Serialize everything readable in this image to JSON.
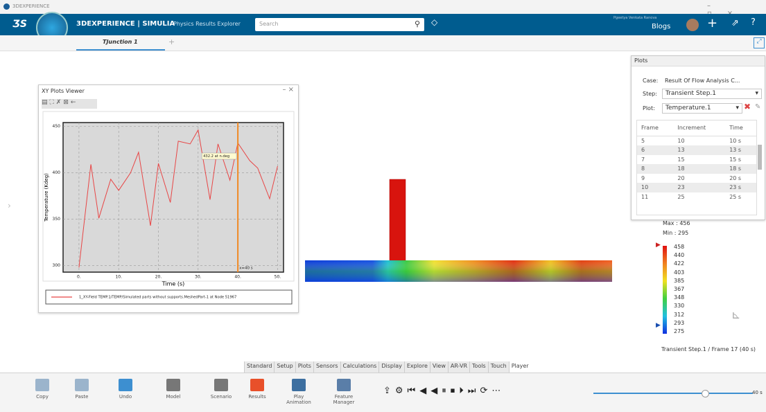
{
  "window": {
    "title": "3DEXPERIENCE"
  },
  "topbar": {
    "brand": "3DEXPERIENCE | SIMULIA",
    "subtitle": "Physics Results Explorer",
    "search": "Search",
    "user": "Pgeetya Venkata Ranova",
    "workspace": "Blogs"
  },
  "tabs": [
    "TJunction 1"
  ],
  "xy_viewer": {
    "title": "XY Plots Viewer"
  },
  "chart_data": {
    "type": "line",
    "x": [
      0,
      3,
      5,
      8,
      10,
      13,
      15,
      18,
      20,
      23,
      25,
      28,
      30,
      33,
      35,
      38,
      40,
      43,
      45,
      48,
      50
    ],
    "series": [
      {
        "name": "1_XY-Field TEMP.1/TEMP/Simulated parts without supports.MeshedPart-1 at Node 51967",
        "color": "#e84545",
        "values": [
          298,
          409,
          351,
          393,
          381,
          400,
          422,
          343,
          410,
          368,
          434,
          431,
          446,
          371,
          431,
          392,
          432,
          413,
          405,
          372,
          407
        ]
      }
    ],
    "xlabel": "Time (s)",
    "ylabel": "Temperature (Kdeg)",
    "xlim": [
      -4,
      51.5
    ],
    "ylim": [
      293,
      454
    ],
    "xticks": [
      {
        "value": 0,
        "label": "0."
      },
      {
        "value": 10,
        "label": "10."
      },
      {
        "value": 20,
        "label": "20."
      },
      {
        "value": 30,
        "label": "30."
      },
      {
        "value": 40,
        "label": "40."
      },
      {
        "value": 50,
        "label": "50."
      }
    ],
    "yticks": [
      300,
      350,
      400,
      450
    ],
    "grid": true,
    "cursor": {
      "x": 40,
      "label": "x=40 s",
      "color": "#f08a24"
    },
    "annotation": "432.2 at n.deg"
  },
  "plots_panel": {
    "title": "Plots",
    "case_label": "Case:",
    "case": "Result Of Flow Analysis C...",
    "step_label": "Step:",
    "step": "Transient Step.1",
    "plot_label": "Plot:",
    "plot": "Temperature.1",
    "columns": [
      "Frame",
      "Increment",
      "Time"
    ],
    "rows": [
      [
        "5",
        "10",
        "10 s"
      ],
      [
        "6",
        "13",
        "13 s"
      ],
      [
        "7",
        "15",
        "15 s"
      ],
      [
        "8",
        "18",
        "18 s"
      ],
      [
        "9",
        "20",
        "20 s"
      ],
      [
        "10",
        "23",
        "23 s"
      ],
      [
        "11",
        "25",
        "25 s"
      ]
    ]
  },
  "legend": {
    "max": "Max : 456",
    "min": "Min : 295",
    "labels": [
      458,
      440,
      422,
      403,
      385,
      367,
      348,
      330,
      312,
      293,
      275
    ],
    "frame": "Transient Step.1 / Frame 17 (40 s)"
  },
  "toolbar": {
    "tabs": [
      "Standard",
      "Setup",
      "Plots",
      "Sensors",
      "Calculations",
      "Display",
      "Explore",
      "View",
      "AR-VR",
      "Tools",
      "Touch",
      "Player"
    ],
    "buttons": [
      "Copy",
      "Paste",
      "Undo",
      "Model",
      "Scenario",
      "Results",
      "Play Animation",
      "Feature Manager"
    ],
    "time": "40 s"
  }
}
